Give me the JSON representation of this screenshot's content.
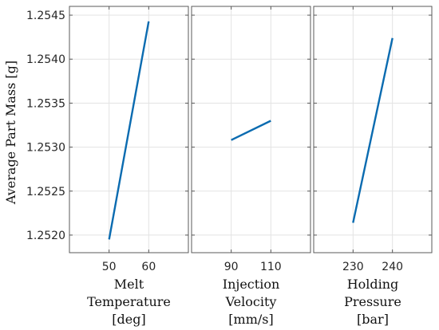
{
  "chart_data": {
    "type": "line",
    "ylabel": "Average Part Mass [g]",
    "ylim": [
      1.2518,
      1.2546
    ],
    "yticks": [
      "1.2520",
      "1.2525",
      "1.2530",
      "1.2535",
      "1.2540",
      "1.2545"
    ],
    "ytick_values": [
      1.252,
      1.2525,
      1.253,
      1.2535,
      1.254,
      1.2545
    ],
    "grid": true,
    "line_color": "#0a6bb0",
    "panels": [
      {
        "xlabel_lines": [
          "Melt",
          "Temperature",
          "[deg]"
        ],
        "xlim": [
          40,
          70
        ],
        "xticks": [
          "50",
          "60"
        ],
        "xtick_values": [
          50,
          60
        ],
        "x": [
          50,
          60
        ],
        "y": [
          1.25195,
          1.25443
        ]
      },
      {
        "xlabel_lines": [
          "Injection",
          "Velocity",
          "[mm/s]"
        ],
        "xlim": [
          70,
          130
        ],
        "xticks": [
          "90",
          "110"
        ],
        "xtick_values": [
          90,
          110
        ],
        "x": [
          90,
          110
        ],
        "y": [
          1.25308,
          1.2533
        ]
      },
      {
        "xlabel_lines": [
          "Holding",
          "Pressure",
          "[bar]"
        ],
        "xlim": [
          220,
          250
        ],
        "xticks": [
          "230",
          "240"
        ],
        "xtick_values": [
          230,
          240
        ],
        "x": [
          230,
          240
        ],
        "y": [
          1.25214,
          1.25424
        ]
      }
    ]
  }
}
